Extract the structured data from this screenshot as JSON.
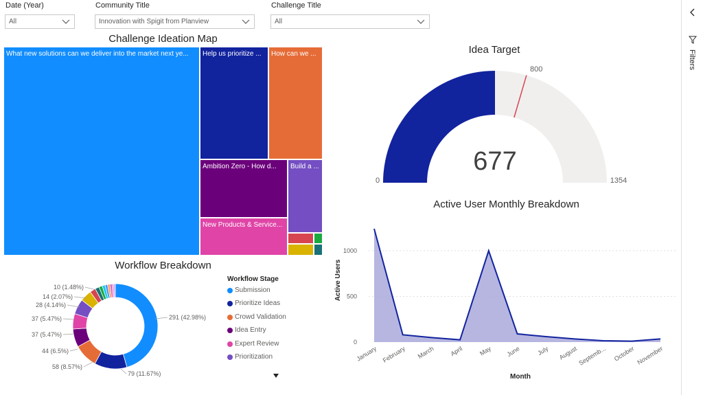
{
  "slicers": {
    "date": {
      "label": "Date (Year)",
      "value": "All"
    },
    "community": {
      "label": "Community Title",
      "value": "Innovation with Spigit from Planview"
    },
    "challenge": {
      "label": "Challenge Title",
      "value": "All"
    }
  },
  "treemap": {
    "title": "Challenge Ideation Map",
    "tiles": [
      {
        "label": "What new solutions can we deliver into the market next ye...",
        "color": "#118dff"
      },
      {
        "label": "Help us prioritize ...",
        "color": "#12239e"
      },
      {
        "label": "How can we ...",
        "color": "#e66c37"
      },
      {
        "label": "Ambition Zero - How d...",
        "color": "#6b007b"
      },
      {
        "label": "Build a ...",
        "color": "#744ec2"
      },
      {
        "label": "New Products & Service...",
        "color": "#e044a7"
      },
      {
        "label": "",
        "color": "#d9b300"
      },
      {
        "label": "",
        "color": "#d64550"
      },
      {
        "label": "",
        "color": "#1aab40"
      },
      {
        "label": "",
        "color": "#15c6f4"
      },
      {
        "label": "",
        "color": "#197278"
      }
    ]
  },
  "gauge": {
    "title": "Idea Target",
    "value": 677,
    "min": 0,
    "max": 1354,
    "target": 800,
    "value_label": "677",
    "min_label": "0",
    "max_label": "1354",
    "target_label": "800",
    "fill_color": "#12239e",
    "track_color": "#f0efee",
    "target_color": "#d64550"
  },
  "donut": {
    "title": "Workflow Breakdown",
    "legend_title": "Workflow Stage",
    "legend": [
      {
        "label": "Submission",
        "color": "#118dff"
      },
      {
        "label": "Prioritize Ideas",
        "color": "#12239e"
      },
      {
        "label": "Crowd Validation",
        "color": "#e66c37"
      },
      {
        "label": "Idea Entry",
        "color": "#6b007b"
      },
      {
        "label": "Expert Review",
        "color": "#e044a7"
      },
      {
        "label": "Prioritization",
        "color": "#744ec2"
      }
    ],
    "data_labels": [
      "291 (42.98%)",
      "79 (11.67%)",
      "58 (8.57%)",
      "44 (6.5%)",
      "37 (5.47%)",
      "37 (5.47%)",
      "28 (4.14%)",
      "14 (2.07%)",
      "10 (1.48%)"
    ],
    "more_icon": "caret-down-icon"
  },
  "chart_data": {
    "type": "area",
    "title": "Active User Monthly Breakdown",
    "xlabel": "Month",
    "ylabel": "Active Users",
    "categories": [
      "January",
      "February",
      "March",
      "April",
      "May",
      "June",
      "July",
      "August",
      "Septemb...",
      "October",
      "November"
    ],
    "series": [
      {
        "name": "",
        "values": [
          1240,
          80,
          50,
          25,
          1000,
          90,
          60,
          35,
          15,
          10,
          35
        ]
      }
    ],
    "ylim": [
      0,
      1300
    ],
    "yticks": [
      0,
      500,
      1000
    ],
    "grid": true,
    "color": "#12239e",
    "fill_color": "#a9a9dc"
  },
  "donut_chart_data": {
    "values": [
      291,
      79,
      58,
      44,
      37,
      37,
      28,
      14,
      10,
      8,
      7,
      6,
      6,
      5,
      4,
      4
    ],
    "colors": [
      "#118dff",
      "#12239e",
      "#e66c37",
      "#6b007b",
      "#e044a7",
      "#744ec2",
      "#d9b300",
      "#d64550",
      "#197278",
      "#1aab40",
      "#15c6f4",
      "#4092ff",
      "#ffa058",
      "#be5dc9",
      "#f472d0",
      "#b5a1ff"
    ]
  },
  "filter_pane": {
    "label": "Filters",
    "collapse_icon": "chevron-left-icon",
    "filter_icon": "funnel-icon"
  }
}
